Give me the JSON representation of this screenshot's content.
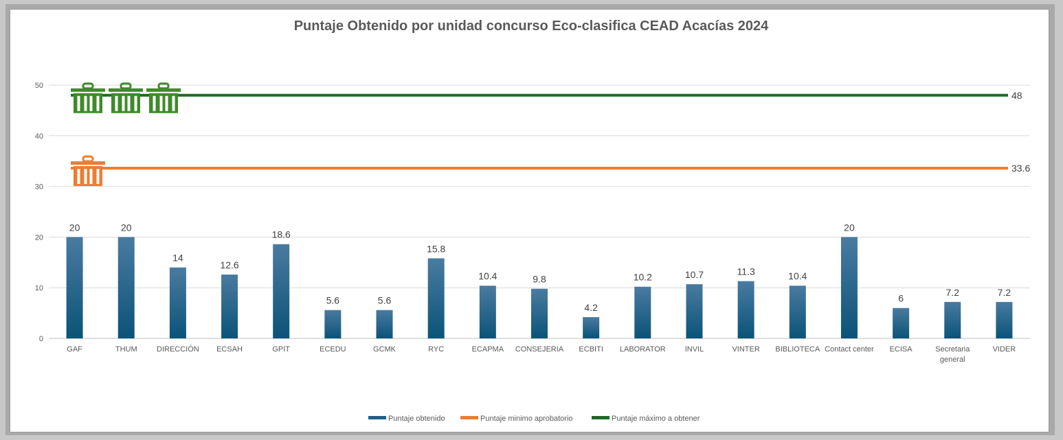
{
  "chart_data": {
    "type": "bar",
    "title": "Puntaje Obtenido por unidad concurso Eco-clasifica CEAD Acacías 2024",
    "categories": [
      "GAF",
      "THUM",
      "DIRECCIÓN",
      "ECSAH",
      "GPIT",
      "ECEDU",
      "GCMK",
      "RYC",
      "ECAPMA",
      "CONSEJERIA",
      "ECBITI",
      "LABORATOR",
      "INVIL",
      "VINTER",
      "BIBLIOTECA",
      "Contact center",
      "ECISA",
      "Secretaria general",
      "VIDER"
    ],
    "series": [
      {
        "name": "Puntaje obtenido",
        "values": [
          20,
          20,
          14,
          12.6,
          18.6,
          5.6,
          5.6,
          15.8,
          10.4,
          9.8,
          4.2,
          10.2,
          10.7,
          11.3,
          10.4,
          20,
          6,
          7.2,
          7.2
        ],
        "color": "#1f6088"
      }
    ],
    "lines": [
      {
        "name": "Puntaje minimo aprobatorio",
        "value": 33.6,
        "label": "33.6",
        "color": "#ed7d31",
        "icons": 1
      },
      {
        "name": "Puntaje máximo a obtener",
        "value": 48,
        "label": "48",
        "color": "#1e6b26",
        "icons": 3
      }
    ],
    "ylim": [
      0,
      50
    ],
    "yticks": [
      "0",
      "10",
      "20",
      "30",
      "40",
      "50"
    ],
    "grid": true,
    "legend_position": "bottom"
  },
  "colors": {
    "bar_top": "#4a7ba0",
    "bar_bottom": "#0b5378",
    "grid": "#d9d9d9",
    "icon_green": "#3f8a2a",
    "icon_orange": "#ed7d31"
  },
  "icons": {
    "threshold_marker": "trash-bin-icon"
  }
}
